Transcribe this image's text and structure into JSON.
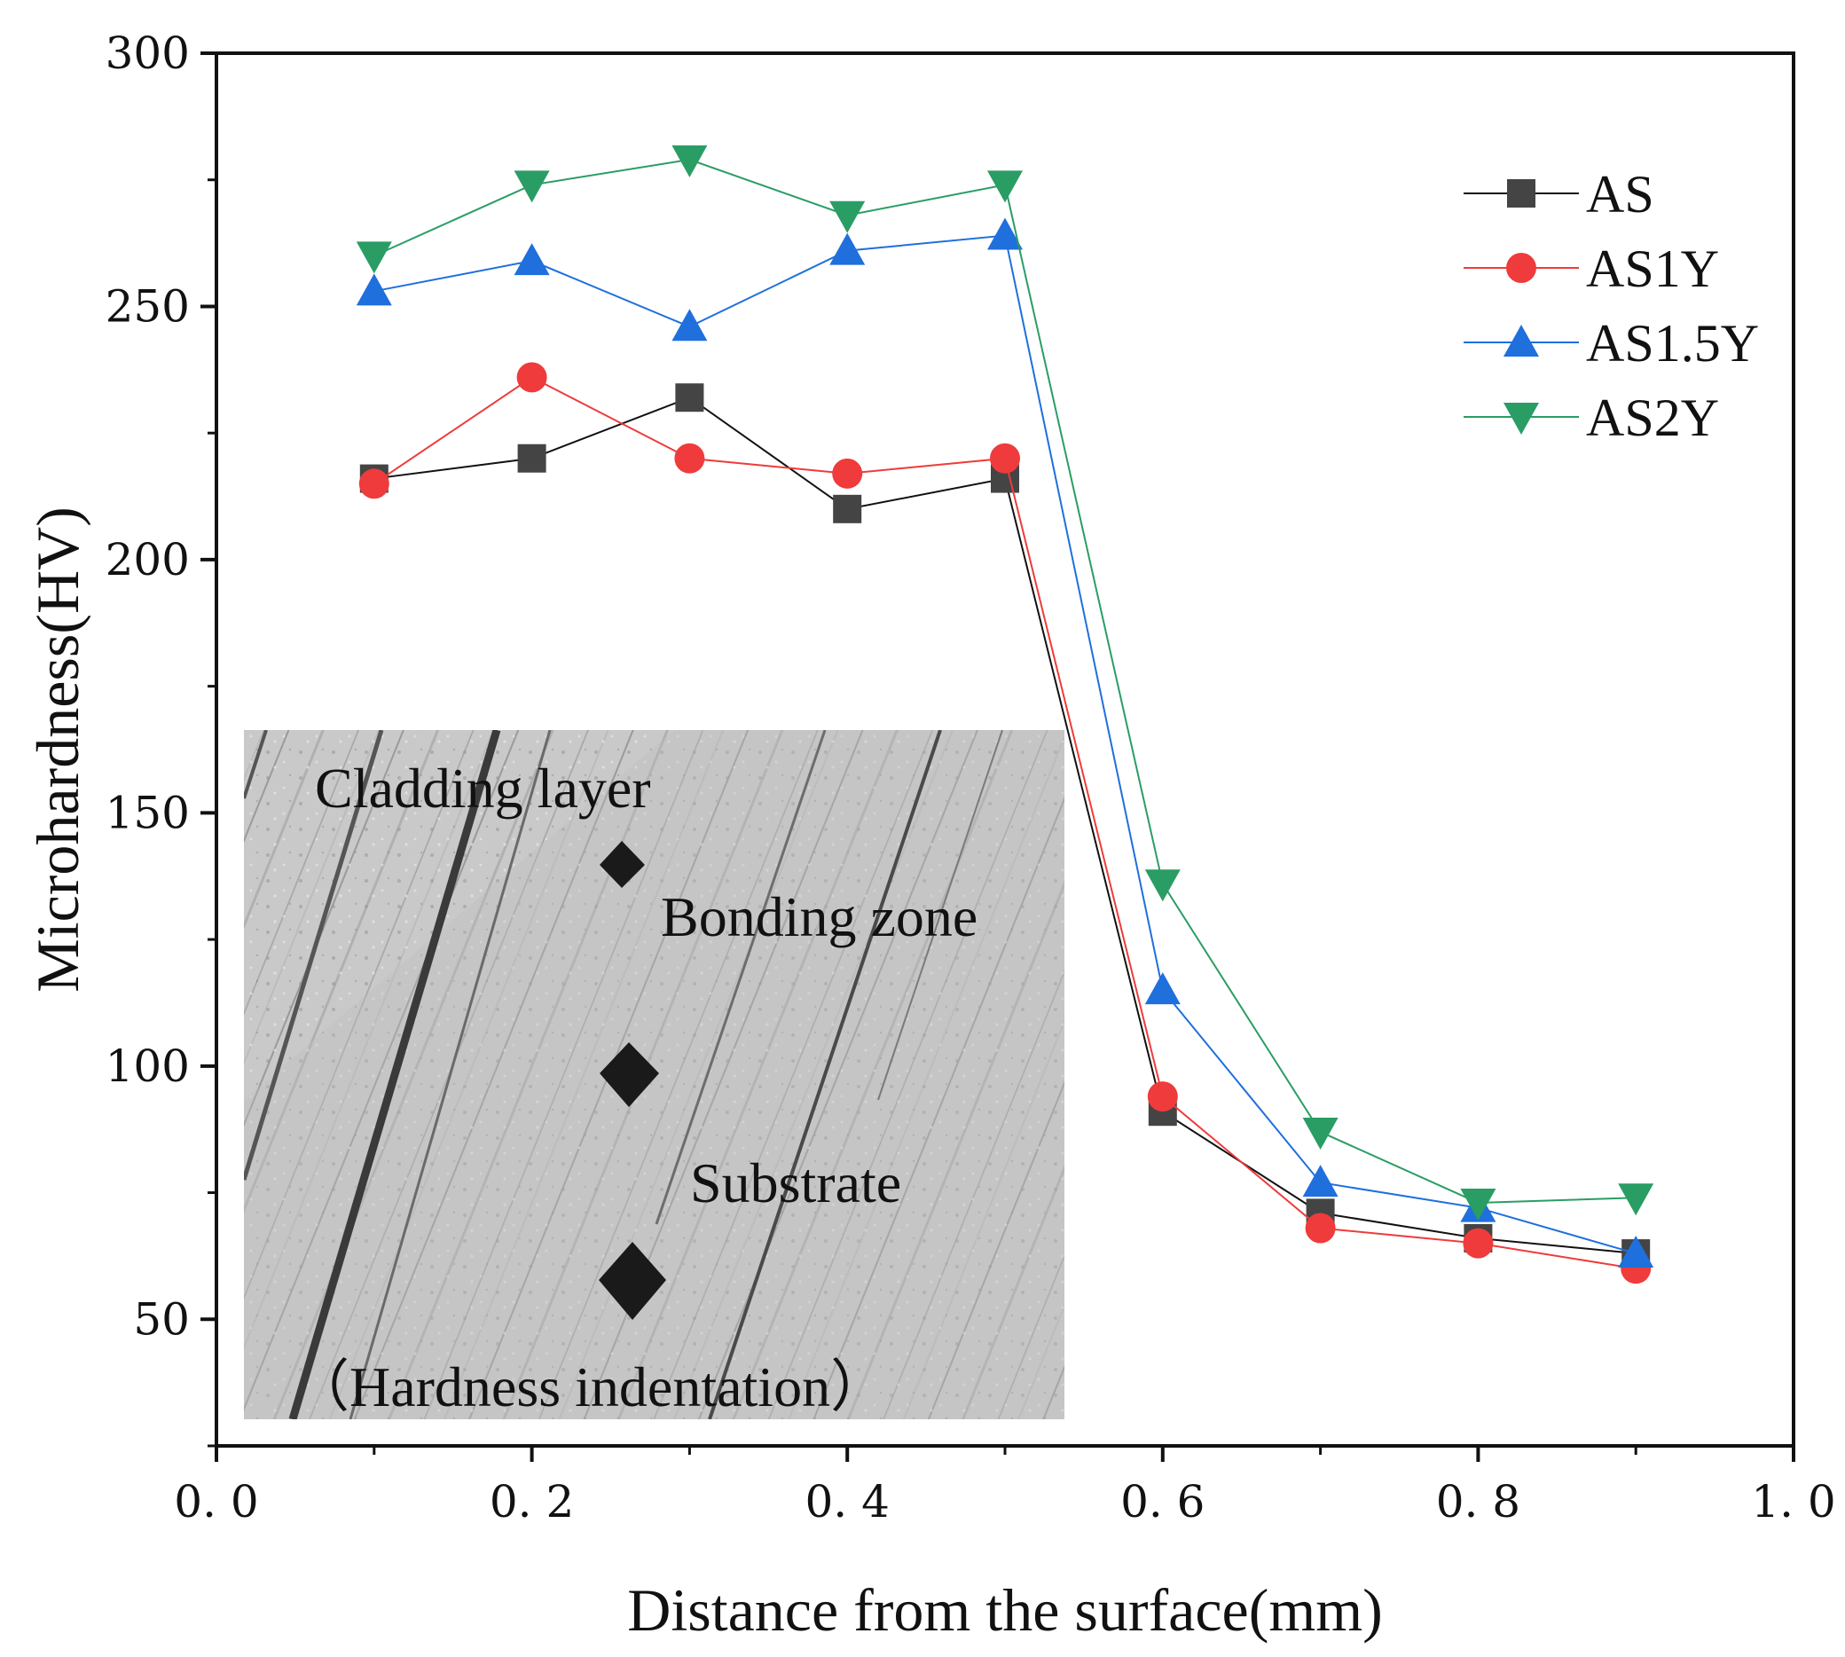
{
  "chart_data": {
    "type": "line",
    "xlabel": "Distance from the surface(mm)",
    "ylabel": "Microhardness(HV)",
    "xlim": [
      0.0,
      1.0
    ],
    "ylim": [
      25,
      300
    ],
    "x_ticks": [
      0.0,
      0.2,
      0.4,
      0.6,
      0.8,
      1.0
    ],
    "x_tick_labels": [
      "0. 0",
      "0. 2",
      "0. 4",
      "0. 6",
      "0. 8",
      "1. 0"
    ],
    "y_ticks": [
      50,
      100,
      150,
      200,
      250,
      300
    ],
    "y_tick_labels": [
      "50",
      "100",
      "150",
      "200",
      "250",
      "300"
    ],
    "x": [
      0.1,
      0.2,
      0.3,
      0.4,
      0.5,
      0.6,
      0.7,
      0.8,
      0.9
    ],
    "series": [
      {
        "name": "AS",
        "marker": "square",
        "color": "#444444",
        "line_color": "#111111",
        "values": [
          216,
          220,
          232,
          210,
          216,
          91,
          71,
          66,
          63
        ]
      },
      {
        "name": "AS1Y",
        "marker": "circle",
        "color": "#ef3b3b",
        "line_color": "#ef3b3b",
        "values": [
          215,
          236,
          220,
          217,
          220,
          94,
          68,
          65,
          60
        ]
      },
      {
        "name": "AS1.5Y",
        "marker": "triangle-up",
        "color": "#1f6fdd",
        "line_color": "#1f6fdd",
        "values": [
          253,
          259,
          246,
          261,
          264,
          115,
          77,
          72,
          63
        ]
      },
      {
        "name": "AS2Y",
        "marker": "triangle-down",
        "color": "#2a9d64",
        "line_color": "#2a9d64",
        "values": [
          260,
          274,
          279,
          268,
          274,
          136,
          87,
          73,
          74
        ]
      }
    ],
    "legend_position": "top-right",
    "inset": {
      "description_labels": [
        "Cladding layer",
        "Bonding zone",
        "Substrate",
        "（Hardness indentation）"
      ]
    }
  }
}
